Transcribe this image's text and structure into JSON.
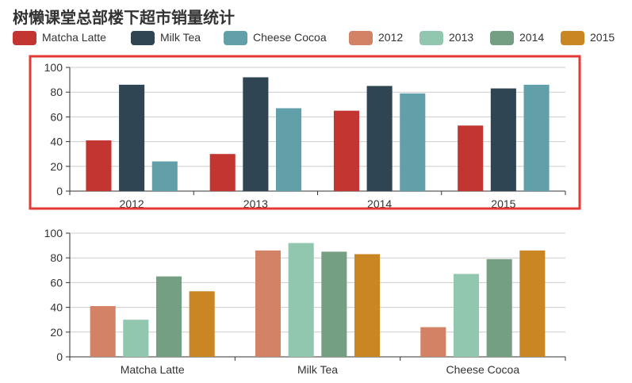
{
  "title": "树懒课堂总部楼下超市销量统计",
  "legend": [
    {
      "name": "Matcha Latte",
      "color": "#c23531"
    },
    {
      "name": "Milk Tea",
      "color": "#2f4554"
    },
    {
      "name": "Cheese Cocoa",
      "color": "#61a0a8"
    },
    {
      "name": "2012",
      "color": "#d48265"
    },
    {
      "name": "2013",
      "color": "#91c7ae"
    },
    {
      "name": "2014",
      "color": "#749f83"
    },
    {
      "name": "2015",
      "color": "#ca8622"
    }
  ],
  "chart_data": [
    {
      "type": "bar",
      "categories": [
        "2012",
        "2013",
        "2014",
        "2015"
      ],
      "series": [
        {
          "name": "Matcha Latte",
          "color": "#c23531",
          "values": [
            41,
            30,
            65,
            53
          ]
        },
        {
          "name": "Milk Tea",
          "color": "#2f4554",
          "values": [
            86,
            92,
            85,
            83
          ]
        },
        {
          "name": "Cheese Cocoa",
          "color": "#61a0a8",
          "values": [
            24,
            67,
            79,
            86
          ]
        }
      ],
      "ylim": [
        0,
        100
      ],
      "yticks": [
        0,
        20,
        40,
        60,
        80,
        100
      ],
      "grid": true,
      "highlighted": true,
      "highlight_color": "#e53935"
    },
    {
      "type": "bar",
      "categories": [
        "Matcha Latte",
        "Milk Tea",
        "Cheese Cocoa"
      ],
      "series": [
        {
          "name": "2012",
          "color": "#d48265",
          "values": [
            41,
            86,
            24
          ]
        },
        {
          "name": "2013",
          "color": "#91c7ae",
          "values": [
            30,
            92,
            67
          ]
        },
        {
          "name": "2014",
          "color": "#749f83",
          "values": [
            65,
            85,
            79
          ]
        },
        {
          "name": "2015",
          "color": "#ca8622",
          "values": [
            53,
            83,
            86
          ]
        }
      ],
      "ylim": [
        0,
        100
      ],
      "yticks": [
        0,
        20,
        40,
        60,
        80,
        100
      ],
      "grid": true
    }
  ]
}
